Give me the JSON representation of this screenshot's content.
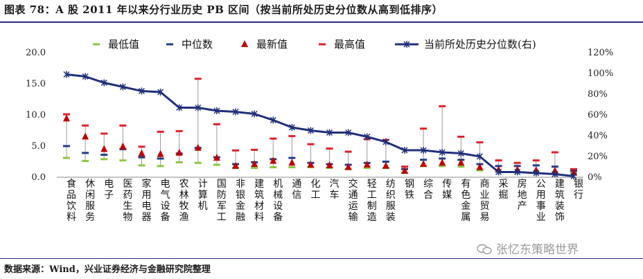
{
  "title": "图表 78：A 股 2011 年以来分行业历史 PB 区间（按当前所处历史分位数从高到低排序）",
  "source": "数据来源：Wind，兴业证券经济与金融研究院整理",
  "watermark": "张忆东策略世界",
  "colors": {
    "min": "#8dc63f",
    "median": "#1f3c88",
    "latest": "#c00000",
    "max": "#e0202a",
    "percentile": "#1f2f7a",
    "range_line": "#999999"
  },
  "chart_data": {
    "type": "line",
    "title": "",
    "ylim_left": [
      0,
      20
    ],
    "ylim_right": [
      0,
      120
    ],
    "yticks_left": [
      "0.0",
      "5.0",
      "10.0",
      "15.0",
      "20.0"
    ],
    "yticks_right": [
      "0%",
      "20%",
      "40%",
      "60%",
      "80%",
      "100%",
      "120%"
    ],
    "legend": [
      "最低值",
      "中位数",
      "最新值",
      "最高值",
      "当前所处历史分位数(右)"
    ],
    "categories": [
      "食品饮料",
      "休闲服务",
      "电子",
      "医药生物",
      "家用电器",
      "电气设备",
      "农林牧渔",
      "计算机",
      "国防军工",
      "非银金融",
      "建筑材料",
      "机械设备",
      "通信",
      "化工",
      "汽车",
      "交通运输",
      "轻工制造",
      "纺织服装",
      "钢铁",
      "综合",
      "传媒",
      "有色金属",
      "商业贸易",
      "采掘",
      "房地产",
      "公用事业",
      "建筑装饰",
      "银行"
    ],
    "series": [
      {
        "name": "最低值",
        "values": [
          3.1,
          2.6,
          2.9,
          2.7,
          1.9,
          1.8,
          2.4,
          2.3,
          2.0,
          1.5,
          1.5,
          1.6,
          1.6,
          1.6,
          1.5,
          1.3,
          1.5,
          1.5,
          0.7,
          1.8,
          1.8,
          1.7,
          1.1,
          0.9,
          0.8,
          0.8,
          0.7,
          0.6
        ]
      },
      {
        "name": "中位数",
        "values": [
          5.0,
          3.9,
          3.6,
          4.5,
          3.2,
          3.0,
          3.8,
          4.7,
          3.2,
          2.1,
          2.4,
          2.9,
          3.1,
          2.3,
          2.1,
          2.0,
          2.3,
          2.5,
          1.3,
          2.8,
          3.0,
          2.8,
          2.1,
          1.8,
          1.8,
          1.9,
          1.7,
          1.0
        ]
      },
      {
        "name": "最新值",
        "values": [
          9.4,
          6.5,
          4.5,
          4.9,
          3.8,
          3.7,
          3.9,
          4.7,
          3.1,
          1.8,
          2.1,
          2.6,
          2.3,
          2.0,
          1.9,
          1.6,
          2.0,
          1.8,
          1.0,
          2.1,
          2.3,
          2.3,
          1.6,
          1.2,
          1.2,
          1.1,
          1.0,
          0.7
        ]
      },
      {
        "name": "最高值",
        "values": [
          10.1,
          8.3,
          7.0,
          8.3,
          4.9,
          7.3,
          7.4,
          15.8,
          8.5,
          4.3,
          4.4,
          6.2,
          6.6,
          5.3,
          4.6,
          4.1,
          6.1,
          6.0,
          1.7,
          7.8,
          11.4,
          6.5,
          5.6,
          2.7,
          2.3,
          2.7,
          4.0,
          1.3
        ]
      },
      {
        "name": "当前所处历史分位数(右)",
        "values": [
          99,
          97,
          91,
          87,
          83,
          82,
          67,
          67,
          64,
          63,
          61,
          55,
          48,
          45,
          43,
          43,
          39,
          34,
          26,
          26,
          24,
          23,
          20,
          5,
          5,
          4,
          3,
          1
        ]
      }
    ]
  }
}
